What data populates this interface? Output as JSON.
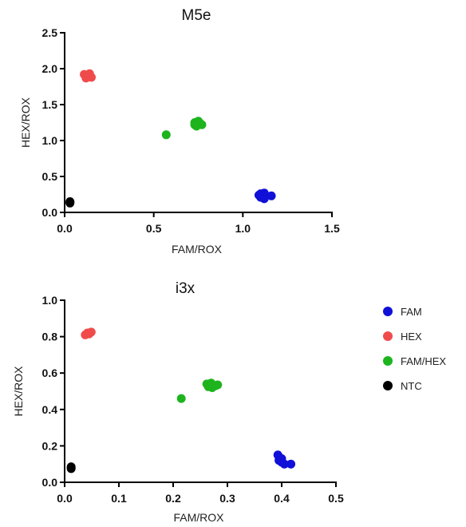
{
  "chart_data": [
    {
      "type": "scatter",
      "title": "M5e",
      "xlabel": "FAM/ROX",
      "ylabel": "HEX/ROX",
      "xlim": [
        0,
        1.5
      ],
      "ylim": [
        0,
        2.5
      ],
      "xticks": [
        "0.0",
        "0.5",
        "1.0",
        "1.5"
      ],
      "yticks": [
        "0.0",
        "0.5",
        "1.0",
        "1.5",
        "2.0",
        "2.5"
      ],
      "series": [
        {
          "name": "FAM",
          "color": "#1010d8",
          "points": [
            [
              1.09,
              0.24
            ],
            [
              1.1,
              0.26
            ],
            [
              1.11,
              0.25
            ],
            [
              1.12,
              0.27
            ],
            [
              1.11,
              0.22
            ],
            [
              1.1,
              0.21
            ],
            [
              1.12,
              0.19
            ],
            [
              1.16,
              0.23
            ]
          ]
        },
        {
          "name": "HEX",
          "color": "#f04b4b",
          "points": [
            [
              0.11,
              1.92
            ],
            [
              0.12,
              1.87
            ],
            [
              0.13,
              1.9
            ],
            [
              0.14,
              1.93
            ],
            [
              0.15,
              1.88
            ],
            [
              0.12,
              1.91
            ]
          ]
        },
        {
          "name": "FAM/HEX",
          "color": "#1db41d",
          "points": [
            [
              0.57,
              1.08
            ],
            [
              0.73,
              1.25
            ],
            [
              0.74,
              1.22
            ],
            [
              0.75,
              1.27
            ],
            [
              0.76,
              1.24
            ],
            [
              0.77,
              1.22
            ],
            [
              0.74,
              1.2
            ],
            [
              0.73,
              1.22
            ]
          ]
        },
        {
          "name": "NTC",
          "color": "#000000",
          "points": [
            [
              0.03,
              0.14
            ],
            [
              0.03,
              0.15
            ],
            [
              0.03,
              0.13
            ]
          ]
        }
      ]
    },
    {
      "type": "scatter",
      "title": "i3x",
      "xlabel": "FAM/ROX",
      "ylabel": "HEX/ROX",
      "xlim": [
        0,
        0.5
      ],
      "ylim": [
        0,
        1.0
      ],
      "xticks": [
        "0.0",
        "0.1",
        "0.2",
        "0.3",
        "0.4",
        "0.5"
      ],
      "yticks": [
        "0.0",
        "0.2",
        "0.4",
        "0.6",
        "0.8",
        "1.0"
      ],
      "series": [
        {
          "name": "FAM",
          "color": "#1010d8",
          "points": [
            [
              0.393,
              0.15
            ],
            [
              0.395,
              0.12
            ],
            [
              0.4,
              0.13
            ],
            [
              0.4,
              0.11
            ],
            [
              0.405,
              0.1
            ],
            [
              0.417,
              0.1
            ],
            [
              0.395,
              0.14
            ]
          ]
        },
        {
          "name": "HEX",
          "color": "#f04b4b",
          "points": [
            [
              0.038,
              0.81
            ],
            [
              0.042,
              0.82
            ],
            [
              0.046,
              0.82
            ],
            [
              0.049,
              0.825
            ],
            [
              0.045,
              0.815
            ]
          ]
        },
        {
          "name": "FAM/HEX",
          "color": "#1db41d",
          "points": [
            [
              0.215,
              0.46
            ],
            [
              0.262,
              0.54
            ],
            [
              0.268,
              0.53
            ],
            [
              0.272,
              0.52
            ],
            [
              0.278,
              0.53
            ],
            [
              0.282,
              0.535
            ],
            [
              0.265,
              0.525
            ],
            [
              0.27,
              0.545
            ]
          ]
        },
        {
          "name": "NTC",
          "color": "#000000",
          "points": [
            [
              0.012,
              0.08
            ],
            [
              0.012,
              0.085
            ],
            [
              0.012,
              0.075
            ]
          ]
        }
      ]
    }
  ],
  "legend": {
    "placement": "right",
    "items": [
      {
        "label": "FAM",
        "color": "#1010d8"
      },
      {
        "label": "HEX",
        "color": "#f04b4b"
      },
      {
        "label": "FAM/HEX",
        "color": "#1db41d"
      },
      {
        "label": "NTC",
        "color": "#000000"
      }
    ]
  }
}
